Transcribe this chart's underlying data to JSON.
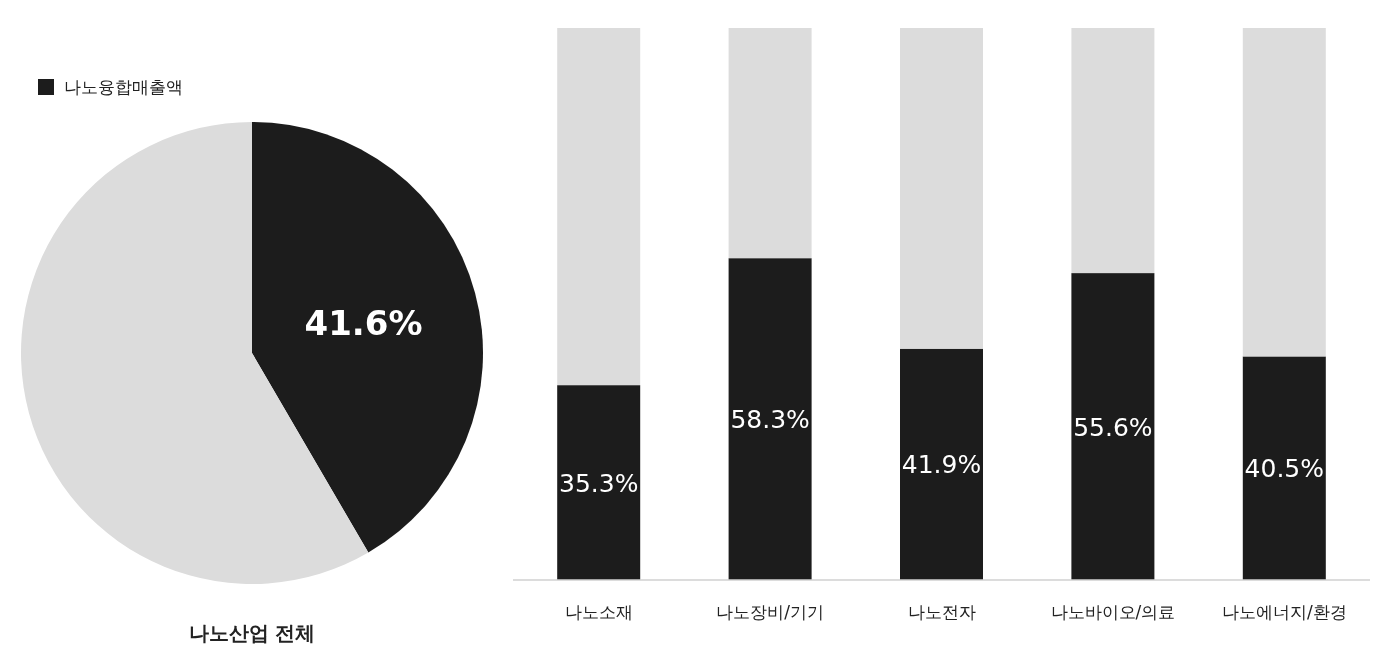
{
  "chart_data": [
    {
      "type": "pie",
      "title": "나노산업 전체",
      "categories": [
        "나노융합매출액",
        null
      ],
      "values": [
        41.6,
        58.4
      ],
      "colors": [
        "#1c1c1c",
        "#dcdcdc"
      ],
      "value_labels": [
        "41.6%",
        null
      ],
      "legend": "top left"
    },
    {
      "type": "bar",
      "stacked": true,
      "categories": [
        "나노소재",
        "나노장비/기기",
        "나노전자",
        "나노바이오/의료",
        "나노에너지/환경"
      ],
      "ylim": [
        0,
        100
      ],
      "tick_labels": "x",
      "series": [
        {
          "color": "#1c1c1c",
          "values": [
            35.3,
            58.3,
            41.9,
            55.6,
            40.5
          ],
          "value_labels": [
            "35.3%",
            "58.3%",
            "41.9%",
            "55.6%",
            "40.5%"
          ]
        },
        {
          "color": "#dcdcdc",
          "values": [
            64.7,
            41.7,
            58.1,
            44.4,
            59.5
          ]
        }
      ]
    }
  ]
}
